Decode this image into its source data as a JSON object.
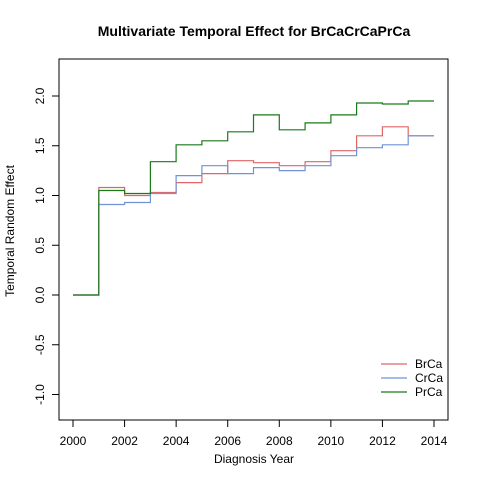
{
  "chart_data": {
    "type": "line",
    "step": true,
    "title": "Multivariate Temporal Effect for BrCaCrCaPrCa",
    "xlabel": "Diagnosis Year",
    "ylabel": "Temporal Random Effect",
    "xlim": [
      2000,
      2014
    ],
    "ylim": [
      -1.0,
      2.0
    ],
    "xticks": [
      "2000",
      "2002",
      "2004",
      "2006",
      "2008",
      "2010",
      "2012",
      "2014"
    ],
    "yticks": [
      "-1.0",
      "-0.5",
      "0.0",
      "0.5",
      "1.0",
      "1.5",
      "2.0"
    ],
    "legend_position": "bottom-right",
    "x": [
      2000,
      2001,
      2002,
      2003,
      2004,
      2005,
      2006,
      2007,
      2008,
      2009,
      2010,
      2011,
      2012,
      2013
    ],
    "series": [
      {
        "name": "BrCa",
        "color": "#e06666",
        "values": [
          0.0,
          1.08,
          1.0,
          1.03,
          1.13,
          1.22,
          1.35,
          1.33,
          1.3,
          1.34,
          1.45,
          1.6,
          1.69,
          1.6
        ]
      },
      {
        "name": "CrCa",
        "color": "#6f93d6",
        "values": [
          0.0,
          0.91,
          0.93,
          1.02,
          1.2,
          1.3,
          1.22,
          1.28,
          1.25,
          1.3,
          1.4,
          1.48,
          1.51,
          1.6
        ]
      },
      {
        "name": "PrCa",
        "color": "#1a7a1a",
        "values": [
          0.0,
          1.05,
          1.02,
          1.34,
          1.51,
          1.55,
          1.64,
          1.81,
          1.66,
          1.73,
          1.81,
          1.93,
          1.92,
          1.95
        ]
      }
    ]
  }
}
